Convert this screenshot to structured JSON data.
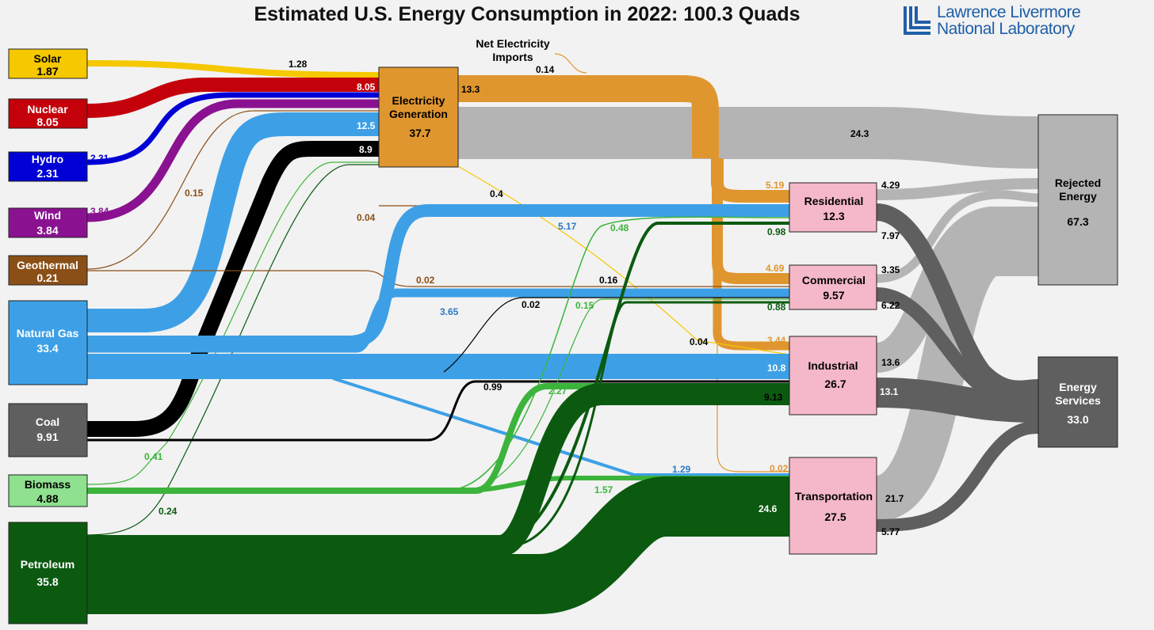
{
  "title": "Estimated U.S. Energy Consumption in 2022: 100.3 Quads",
  "logo": {
    "line1": "Lawrence Livermore",
    "line2": "National Laboratory"
  },
  "colors": {
    "solar": "#f5c800",
    "nuclear": "#c4000a",
    "hydro": "#0000d6",
    "wind": "#8a1291",
    "geothermal": "#8a4f16",
    "gas": "#3da0e6",
    "coal": "#000000",
    "coalbox": "#5f5f5f",
    "biomass": "#3cb43c",
    "biomassbox": "#8fe08f",
    "petroleum": "#0b5a10",
    "elec": "#e0962f",
    "rejected": "#b4b4b4",
    "services": "#5f5f5f",
    "sector": "#f5b8c8"
  },
  "sources": [
    {
      "id": "solar",
      "name": "Solar",
      "value": "1.87"
    },
    {
      "id": "nuclear",
      "name": "Nuclear",
      "value": "8.05"
    },
    {
      "id": "hydro",
      "name": "Hydro",
      "value": "2.31"
    },
    {
      "id": "wind",
      "name": "Wind",
      "value": "3.84"
    },
    {
      "id": "geothermal",
      "name": "Geothermal",
      "value": "0.21"
    },
    {
      "id": "gas",
      "name": "Natural Gas",
      "value": "33.4"
    },
    {
      "id": "coal",
      "name": "Coal",
      "value": "9.91"
    },
    {
      "id": "biomass",
      "name": "Biomass",
      "value": "4.88"
    },
    {
      "id": "petroleum",
      "name": "Petroleum",
      "value": "35.8"
    }
  ],
  "electricity": {
    "line1": "Electricity",
    "line2": "Generation",
    "value": "37.7"
  },
  "net_imports": {
    "line1": "Net Electricity",
    "line2": "Imports",
    "value": "0.14"
  },
  "sectors": [
    {
      "id": "residential",
      "name": "Residential",
      "value": "12.3"
    },
    {
      "id": "commercial",
      "name": "Commercial",
      "value": "9.57"
    },
    {
      "id": "industrial",
      "name": "Industrial",
      "value": "26.7"
    },
    {
      "id": "transportation",
      "name": "Transportation",
      "value": "27.5"
    }
  ],
  "rejected": {
    "line1": "Rejected",
    "line2": "Energy",
    "value": "67.3"
  },
  "services": {
    "line1": "Energy",
    "line2": "Services",
    "value": "33.0"
  },
  "flows": [
    {
      "id": "solar-elec",
      "from": "solar",
      "to": "electricity",
      "value": "1.28"
    },
    {
      "id": "nuclear-elec",
      "from": "nuclear",
      "to": "electricity",
      "value": "8.05"
    },
    {
      "id": "hydro-elec",
      "from": "hydro",
      "to": "electricity",
      "value": "2.31"
    },
    {
      "id": "wind-elec",
      "from": "wind",
      "to": "electricity",
      "value": "3.84"
    },
    {
      "id": "geo-elec",
      "from": "geothermal",
      "to": "electricity",
      "value": "0.15"
    },
    {
      "id": "gas-elec",
      "from": "gas",
      "to": "electricity",
      "value": "12.5"
    },
    {
      "id": "coal-elec",
      "from": "coal",
      "to": "electricity",
      "value": "8.9"
    },
    {
      "id": "elec-out",
      "from": "electricity",
      "to": "sectors",
      "value": "13.3"
    },
    {
      "id": "elec-rej",
      "from": "electricity",
      "to": "rejected",
      "value": "24.3"
    },
    {
      "id": "solar-res",
      "from": "solar",
      "to": "residential",
      "value": "0.4"
    },
    {
      "id": "geo-res",
      "from": "geothermal",
      "to": "residential",
      "value": "0.04"
    },
    {
      "id": "gas-res",
      "from": "gas",
      "to": "residential",
      "value": "5.17"
    },
    {
      "id": "pet-res",
      "from": "petroleum",
      "to": "residential",
      "value": "0.98"
    },
    {
      "id": "bio-res",
      "from": "biomass",
      "to": "residential",
      "value": "0.48"
    },
    {
      "id": "elec-res",
      "from": "electricity",
      "to": "residential",
      "value": "5.19"
    },
    {
      "id": "geo-com",
      "from": "geothermal",
      "to": "commercial",
      "value": "0.02"
    },
    {
      "id": "gas-com",
      "from": "gas",
      "to": "commercial",
      "value": "3.65"
    },
    {
      "id": "coal-com",
      "from": "coal",
      "to": "commercial",
      "value": "0.02"
    },
    {
      "id": "bio-com",
      "from": "biomass",
      "to": "commercial",
      "value": "0.15"
    },
    {
      "id": "sol-com",
      "from": "solar",
      "to": "commercial",
      "value": "0.16"
    },
    {
      "id": "pet-com",
      "from": "petroleum",
      "to": "commercial",
      "value": "0.88"
    },
    {
      "id": "elec-com",
      "from": "electricity",
      "to": "commercial",
      "value": "4.69"
    },
    {
      "id": "sol-ind",
      "from": "solar",
      "to": "industrial",
      "value": "0.04"
    },
    {
      "id": "gas-ind",
      "from": "gas",
      "to": "industrial",
      "value": "10.8"
    },
    {
      "id": "coal-ind",
      "from": "coal",
      "to": "industrial",
      "value": "0.99"
    },
    {
      "id": "bio-ind",
      "from": "biomass",
      "to": "industrial",
      "value": "2.27"
    },
    {
      "id": "pet-ind",
      "from": "petroleum",
      "to": "industrial",
      "value": "9.13"
    },
    {
      "id": "elec-ind",
      "from": "electricity",
      "to": "industrial",
      "value": "3.44"
    },
    {
      "id": "gas-trans",
      "from": "gas",
      "to": "transportation",
      "value": "1.29"
    },
    {
      "id": "bio-trans",
      "from": "biomass",
      "to": "transportation",
      "value": "1.57"
    },
    {
      "id": "pet-trans",
      "from": "petroleum",
      "to": "transportation",
      "value": "24.6"
    },
    {
      "id": "elec-trans",
      "from": "electricity",
      "to": "transportation",
      "value": "0.02"
    },
    {
      "id": "bio-elec",
      "from": "biomass",
      "to": "electricity",
      "value": "0.41"
    },
    {
      "id": "pet-elec",
      "from": "petroleum",
      "to": "electricity",
      "value": "0.24"
    },
    {
      "id": "res-rej",
      "from": "residential",
      "to": "rejected",
      "value": "4.29"
    },
    {
      "id": "res-svc",
      "from": "residential",
      "to": "services",
      "value": "7.97"
    },
    {
      "id": "com-rej",
      "from": "commercial",
      "to": "rejected",
      "value": "3.35"
    },
    {
      "id": "com-svc",
      "from": "commercial",
      "to": "services",
      "value": "6.22"
    },
    {
      "id": "ind-rej",
      "from": "industrial",
      "to": "rejected",
      "value": "13.6"
    },
    {
      "id": "ind-svc",
      "from": "industrial",
      "to": "services",
      "value": "13.1"
    },
    {
      "id": "trans-rej",
      "from": "transportation",
      "to": "rejected",
      "value": "21.7"
    },
    {
      "id": "trans-svc",
      "from": "transportation",
      "to": "services",
      "value": "5.77"
    }
  ]
}
